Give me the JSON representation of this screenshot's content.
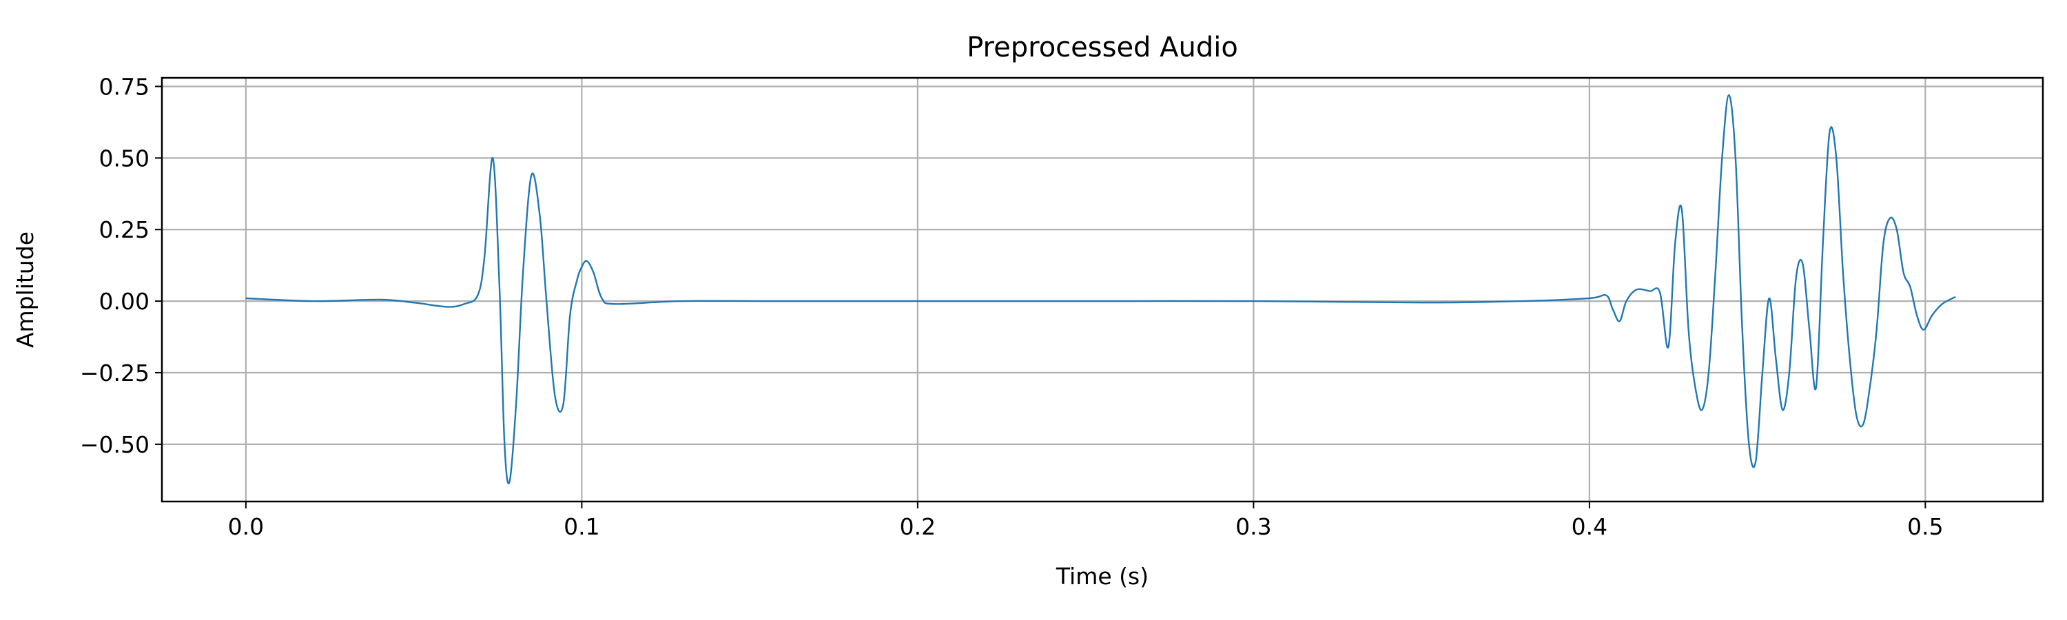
{
  "chart_data": {
    "type": "line",
    "title": "Preprocessed Audio",
    "xlabel": "Time (s)",
    "ylabel": "Amplitude",
    "xlim": [
      -0.025,
      0.535
    ],
    "ylim": [
      -0.7,
      0.78
    ],
    "xticks": [
      0.0,
      0.1,
      0.2,
      0.3,
      0.4,
      0.5
    ],
    "xtick_labels": [
      "0.0",
      "0.1",
      "0.2",
      "0.3",
      "0.4",
      "0.5"
    ],
    "yticks": [
      -0.5,
      -0.25,
      0.0,
      0.25,
      0.5,
      0.75
    ],
    "ytick_labels": [
      "−0.50",
      "−0.25",
      "0.00",
      "0.25",
      "0.50",
      "0.75"
    ],
    "grid": true,
    "legend": "none",
    "line_color": "#1f77b4",
    "series": [
      {
        "x": [
          0.0,
          0.02,
          0.04,
          0.05,
          0.06,
          0.065,
          0.069,
          0.071,
          0.0735,
          0.0755,
          0.077,
          0.0785,
          0.0805,
          0.0825,
          0.085,
          0.0875,
          0.0895,
          0.092,
          0.0945,
          0.0965,
          0.0985,
          0.1,
          0.1015,
          0.1035,
          0.106,
          0.11,
          0.13,
          0.16,
          0.2,
          0.25,
          0.3,
          0.35,
          0.38,
          0.4,
          0.405,
          0.407,
          0.409,
          0.411,
          0.414,
          0.418,
          0.421,
          0.4235,
          0.4255,
          0.4275,
          0.4295,
          0.4315,
          0.4335,
          0.4355,
          0.4375,
          0.4395,
          0.4415,
          0.4435,
          0.4455,
          0.4475,
          0.4495,
          0.4515,
          0.4535,
          0.4555,
          0.4575,
          0.4595,
          0.4615,
          0.4635,
          0.4655,
          0.4675,
          0.4695,
          0.4715,
          0.4735,
          0.4755,
          0.4775,
          0.4795,
          0.4815,
          0.4835,
          0.4855,
          0.4875,
          0.4895,
          0.4915,
          0.4935,
          0.4955,
          0.4975,
          0.4995,
          0.502,
          0.505,
          0.509
        ],
        "y": [
          0.01,
          0.0,
          0.005,
          -0.005,
          -0.02,
          -0.01,
          0.02,
          0.15,
          0.5,
          0.05,
          -0.5,
          -0.63,
          -0.35,
          0.1,
          0.44,
          0.3,
          0.0,
          -0.33,
          -0.36,
          -0.05,
          0.07,
          0.12,
          0.14,
          0.1,
          0.01,
          -0.01,
          0.0,
          0.0,
          0.0,
          0.0,
          0.0,
          -0.005,
          0.0,
          0.01,
          0.02,
          -0.03,
          -0.07,
          0.0,
          0.04,
          0.035,
          0.03,
          -0.16,
          0.2,
          0.32,
          -0.1,
          -0.3,
          -0.38,
          -0.25,
          0.1,
          0.5,
          0.72,
          0.5,
          -0.1,
          -0.5,
          -0.56,
          -0.25,
          0.01,
          -0.2,
          -0.38,
          -0.25,
          0.08,
          0.13,
          -0.1,
          -0.3,
          0.2,
          0.59,
          0.5,
          0.1,
          -0.2,
          -0.4,
          -0.43,
          -0.3,
          -0.1,
          0.2,
          0.29,
          0.25,
          0.1,
          0.05,
          -0.05,
          -0.1,
          -0.05,
          -0.01,
          0.015
        ]
      }
    ]
  }
}
